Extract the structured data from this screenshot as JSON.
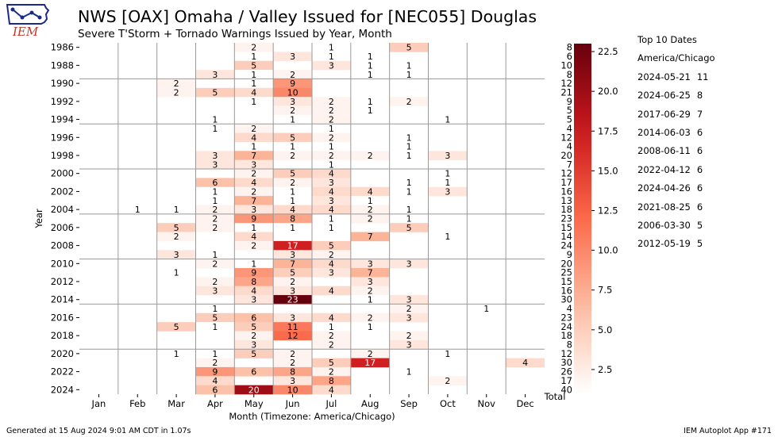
{
  "header": {
    "logo_text": "IEM",
    "title": "NWS [OAX] Omaha / Valley Issued for [NEC055] Douglas",
    "subtitle": "Severe T'Storm + Tornado Warnings Issued by Year, Month"
  },
  "footer": {
    "generated": "Generated at 15 Aug 2024 9:01 AM CDT in 1.07s",
    "app": "IEM Autoplot App #171"
  },
  "top10": {
    "title": "Top 10 Dates",
    "timezone": "America/Chicago",
    "entries": [
      {
        "date": "2024-05-21",
        "count": "11"
      },
      {
        "date": "2024-06-25",
        "count": "8"
      },
      {
        "date": "2017-06-29",
        "count": "7"
      },
      {
        "date": "2014-06-03",
        "count": "6"
      },
      {
        "date": "2008-06-11",
        "count": "6"
      },
      {
        "date": "2022-04-12",
        "count": "6"
      },
      {
        "date": "2024-04-26",
        "count": "6"
      },
      {
        "date": "2021-08-25",
        "count": "6"
      },
      {
        "date": "2006-03-30",
        "count": "5"
      },
      {
        "date": "2012-05-19",
        "count": "5"
      }
    ]
  },
  "chart_data": {
    "type": "heatmap",
    "xlabel": "Month (Timezone: America/Chicago)",
    "ylabel": "Year",
    "x_tick_labels": [
      "Jan",
      "Feb",
      "Mar",
      "Apr",
      "May",
      "Jun",
      "Jul",
      "Aug",
      "Sep",
      "Oct",
      "Nov",
      "Dec"
    ],
    "total_label": "Total",
    "y_tick_labels": [
      "1986",
      "1988",
      "1990",
      "1992",
      "1994",
      "1996",
      "1998",
      "2000",
      "2002",
      "2004",
      "2006",
      "2008",
      "2010",
      "2012",
      "2014",
      "2016",
      "2018",
      "2020",
      "2022",
      "2024"
    ],
    "years": [
      1986,
      1987,
      1988,
      1989,
      1990,
      1991,
      1992,
      1993,
      1994,
      1995,
      1996,
      1997,
      1998,
      1999,
      2000,
      2001,
      2002,
      2003,
      2004,
      2005,
      2006,
      2007,
      2008,
      2009,
      2010,
      2011,
      2012,
      2013,
      2014,
      2015,
      2016,
      2017,
      2018,
      2019,
      2020,
      2021,
      2022,
      2023,
      2024
    ],
    "values": [
      [
        0,
        0,
        0,
        0,
        2,
        0,
        1,
        0,
        5,
        0,
        0,
        0
      ],
      [
        0,
        0,
        0,
        0,
        1,
        3,
        1,
        1,
        0,
        0,
        0,
        0
      ],
      [
        0,
        0,
        0,
        0,
        5,
        0,
        3,
        1,
        1,
        0,
        0,
        0
      ],
      [
        0,
        0,
        0,
        3,
        1,
        2,
        0,
        1,
        1,
        0,
        0,
        0
      ],
      [
        0,
        0,
        2,
        0,
        1,
        9,
        0,
        0,
        0,
        0,
        0,
        0
      ],
      [
        0,
        0,
        2,
        5,
        4,
        10,
        0,
        0,
        0,
        0,
        0,
        0
      ],
      [
        0,
        0,
        0,
        0,
        1,
        3,
        2,
        1,
        2,
        0,
        0,
        0
      ],
      [
        0,
        0,
        0,
        0,
        0,
        2,
        2,
        1,
        0,
        0,
        0,
        0
      ],
      [
        0,
        0,
        0,
        1,
        0,
        1,
        2,
        0,
        0,
        1,
        0,
        0
      ],
      [
        0,
        0,
        0,
        1,
        2,
        0,
        1,
        0,
        0,
        0,
        0,
        0
      ],
      [
        0,
        0,
        0,
        0,
        4,
        5,
        2,
        0,
        1,
        0,
        0,
        0
      ],
      [
        0,
        0,
        0,
        0,
        1,
        1,
        1,
        0,
        1,
        0,
        0,
        0
      ],
      [
        0,
        0,
        0,
        3,
        7,
        2,
        2,
        2,
        1,
        3,
        0,
        0
      ],
      [
        0,
        0,
        0,
        3,
        3,
        0,
        1,
        0,
        0,
        0,
        0,
        0
      ],
      [
        0,
        0,
        0,
        0,
        2,
        5,
        4,
        0,
        0,
        1,
        0,
        0
      ],
      [
        0,
        0,
        0,
        6,
        4,
        2,
        3,
        0,
        1,
        1,
        0,
        0
      ],
      [
        0,
        0,
        0,
        1,
        2,
        1,
        4,
        4,
        1,
        3,
        0,
        0
      ],
      [
        0,
        0,
        0,
        1,
        7,
        1,
        3,
        1,
        0,
        0,
        0,
        0
      ],
      [
        0,
        1,
        1,
        2,
        3,
        4,
        4,
        2,
        1,
        0,
        0,
        0
      ],
      [
        0,
        0,
        0,
        2,
        9,
        8,
        1,
        2,
        1,
        0,
        0,
        0
      ],
      [
        0,
        0,
        5,
        2,
        1,
        1,
        1,
        0,
        5,
        0,
        0,
        0
      ],
      [
        0,
        0,
        2,
        0,
        4,
        0,
        0,
        7,
        0,
        1,
        0,
        0
      ],
      [
        0,
        0,
        0,
        0,
        2,
        17,
        5,
        0,
        0,
        0,
        0,
        0
      ],
      [
        0,
        0,
        3,
        1,
        0,
        3,
        2,
        0,
        0,
        0,
        0,
        0
      ],
      [
        0,
        0,
        0,
        2,
        1,
        7,
        4,
        3,
        3,
        0,
        0,
        0
      ],
      [
        0,
        0,
        1,
        0,
        9,
        5,
        3,
        7,
        0,
        0,
        0,
        0
      ],
      [
        0,
        0,
        0,
        2,
        8,
        2,
        0,
        3,
        0,
        0,
        0,
        0
      ],
      [
        0,
        0,
        0,
        3,
        4,
        3,
        4,
        2,
        0,
        0,
        0,
        0
      ],
      [
        0,
        0,
        0,
        0,
        3,
        23,
        0,
        1,
        3,
        0,
        0,
        0
      ],
      [
        0,
        0,
        0,
        1,
        0,
        0,
        0,
        0,
        2,
        0,
        1,
        0
      ],
      [
        0,
        0,
        0,
        5,
        6,
        3,
        4,
        2,
        3,
        0,
        0,
        0
      ],
      [
        0,
        0,
        5,
        1,
        5,
        11,
        1,
        1,
        0,
        0,
        0,
        0
      ],
      [
        0,
        0,
        0,
        0,
        2,
        12,
        2,
        0,
        2,
        0,
        0,
        0
      ],
      [
        0,
        0,
        0,
        0,
        3,
        0,
        2,
        0,
        3,
        0,
        0,
        0
      ],
      [
        0,
        0,
        1,
        1,
        5,
        2,
        0,
        2,
        0,
        1,
        0,
        0
      ],
      [
        0,
        0,
        0,
        2,
        0,
        2,
        5,
        17,
        0,
        0,
        0,
        4
      ],
      [
        0,
        0,
        0,
        9,
        6,
        8,
        2,
        0,
        1,
        0,
        0,
        0
      ],
      [
        0,
        0,
        0,
        4,
        0,
        3,
        8,
        0,
        0,
        2,
        0,
        0
      ],
      [
        0,
        0,
        0,
        6,
        20,
        10,
        4,
        0,
        0,
        0,
        0,
        0
      ]
    ],
    "row_totals": [
      8,
      6,
      10,
      8,
      12,
      21,
      9,
      5,
      5,
      4,
      12,
      4,
      20,
      7,
      12,
      17,
      16,
      13,
      18,
      23,
      15,
      14,
      24,
      9,
      20,
      25,
      15,
      16,
      30,
      4,
      23,
      24,
      18,
      8,
      12,
      30,
      26,
      17,
      40
    ],
    "colorbar": {
      "colormap": "Reds",
      "range": [
        1,
        23
      ],
      "ticks": [
        "2.5",
        "5.0",
        "7.5",
        "10.0",
        "12.5",
        "15.0",
        "17.5",
        "20.0",
        "22.5"
      ]
    },
    "grid": "horizontal separators every 5 years, vertical separators between months"
  }
}
